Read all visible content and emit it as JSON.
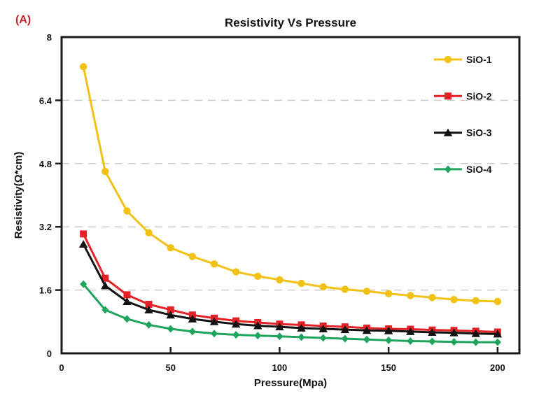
{
  "figure": {
    "panel_label": "(A)"
  },
  "style": {
    "background": "#ffffff",
    "axis_color": "#1a1a1a",
    "grid_color": "#cccccc",
    "panel_label_color": "#c8242b",
    "text_color": "#111111"
  },
  "chart_data": {
    "type": "line",
    "title": "Resistivity Vs Pressure",
    "xlabel": "Pressure(Mpa)",
    "ylabel": "Resistivity(Ω*cm)",
    "xlim": [
      0,
      210
    ],
    "ylim": [
      0,
      8
    ],
    "xticks": [
      0,
      50,
      100,
      150,
      200
    ],
    "yticks": [
      0,
      1.6,
      3.2,
      4.8,
      6.4,
      8
    ],
    "gridlines_y": [
      1.6,
      3.2,
      4.8,
      6.4
    ],
    "grid_style": "horizontal dashed",
    "legend_position": "upper right inside, no frame",
    "x": [
      10,
      20,
      30,
      40,
      50,
      60,
      70,
      80,
      90,
      100,
      110,
      120,
      130,
      140,
      150,
      160,
      170,
      180,
      190,
      200
    ],
    "series": [
      {
        "name": "SiO-1",
        "color": "#F2C116",
        "marker": "circle",
        "values": [
          7.25,
          4.6,
          3.6,
          3.05,
          2.67,
          2.45,
          2.26,
          2.06,
          1.95,
          1.86,
          1.77,
          1.68,
          1.62,
          1.57,
          1.51,
          1.46,
          1.41,
          1.36,
          1.33,
          1.31
        ]
      },
      {
        "name": "SiO-2",
        "color": "#E32227",
        "marker": "square",
        "values": [
          3.02,
          1.9,
          1.48,
          1.24,
          1.1,
          0.97,
          0.89,
          0.82,
          0.78,
          0.74,
          0.72,
          0.69,
          0.67,
          0.64,
          0.62,
          0.61,
          0.59,
          0.58,
          0.56,
          0.54
        ]
      },
      {
        "name": "SiO-3",
        "color": "#121212",
        "marker": "triangle",
        "values": [
          2.76,
          1.71,
          1.31,
          1.1,
          0.97,
          0.87,
          0.8,
          0.74,
          0.7,
          0.67,
          0.64,
          0.62,
          0.6,
          0.58,
          0.57,
          0.55,
          0.53,
          0.52,
          0.5,
          0.49
        ]
      },
      {
        "name": "SiO-4",
        "color": "#1FA45E",
        "marker": "diamond",
        "values": [
          1.75,
          1.1,
          0.87,
          0.72,
          0.62,
          0.55,
          0.5,
          0.47,
          0.45,
          0.43,
          0.41,
          0.39,
          0.37,
          0.35,
          0.33,
          0.31,
          0.3,
          0.29,
          0.28,
          0.28
        ]
      }
    ]
  }
}
